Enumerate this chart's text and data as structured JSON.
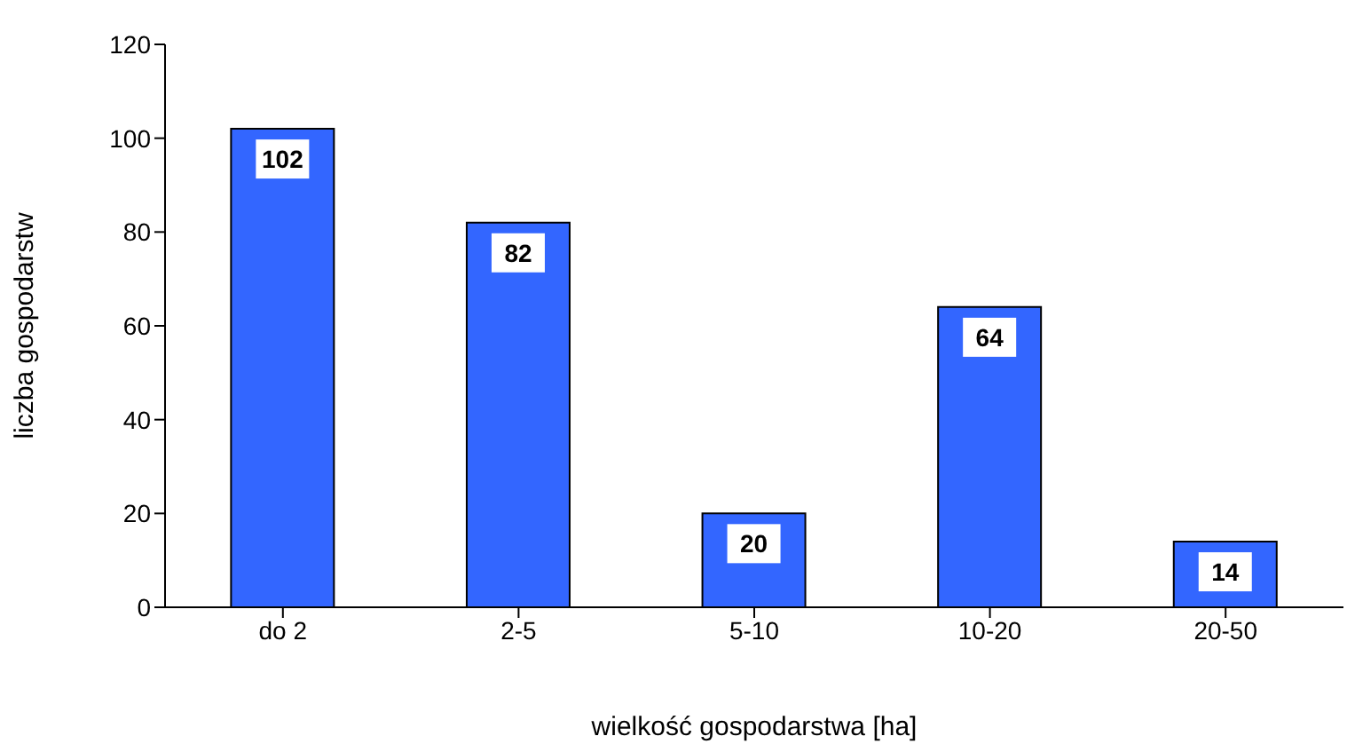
{
  "chart_data": {
    "type": "bar",
    "xlabel": "wielkość gospodarstwa [ha]",
    "ylabel": "liczba gospodarstw",
    "categories": [
      "do 2",
      "2-5",
      "5-10",
      "10-20",
      "20-50"
    ],
    "values": [
      102,
      82,
      20,
      64,
      14
    ],
    "color": "#3366ff",
    "ylim": [
      0,
      120
    ],
    "yticks": [
      0,
      20,
      40,
      60,
      80,
      100,
      120
    ],
    "grid": false,
    "data_labels": true,
    "legend": false
  }
}
